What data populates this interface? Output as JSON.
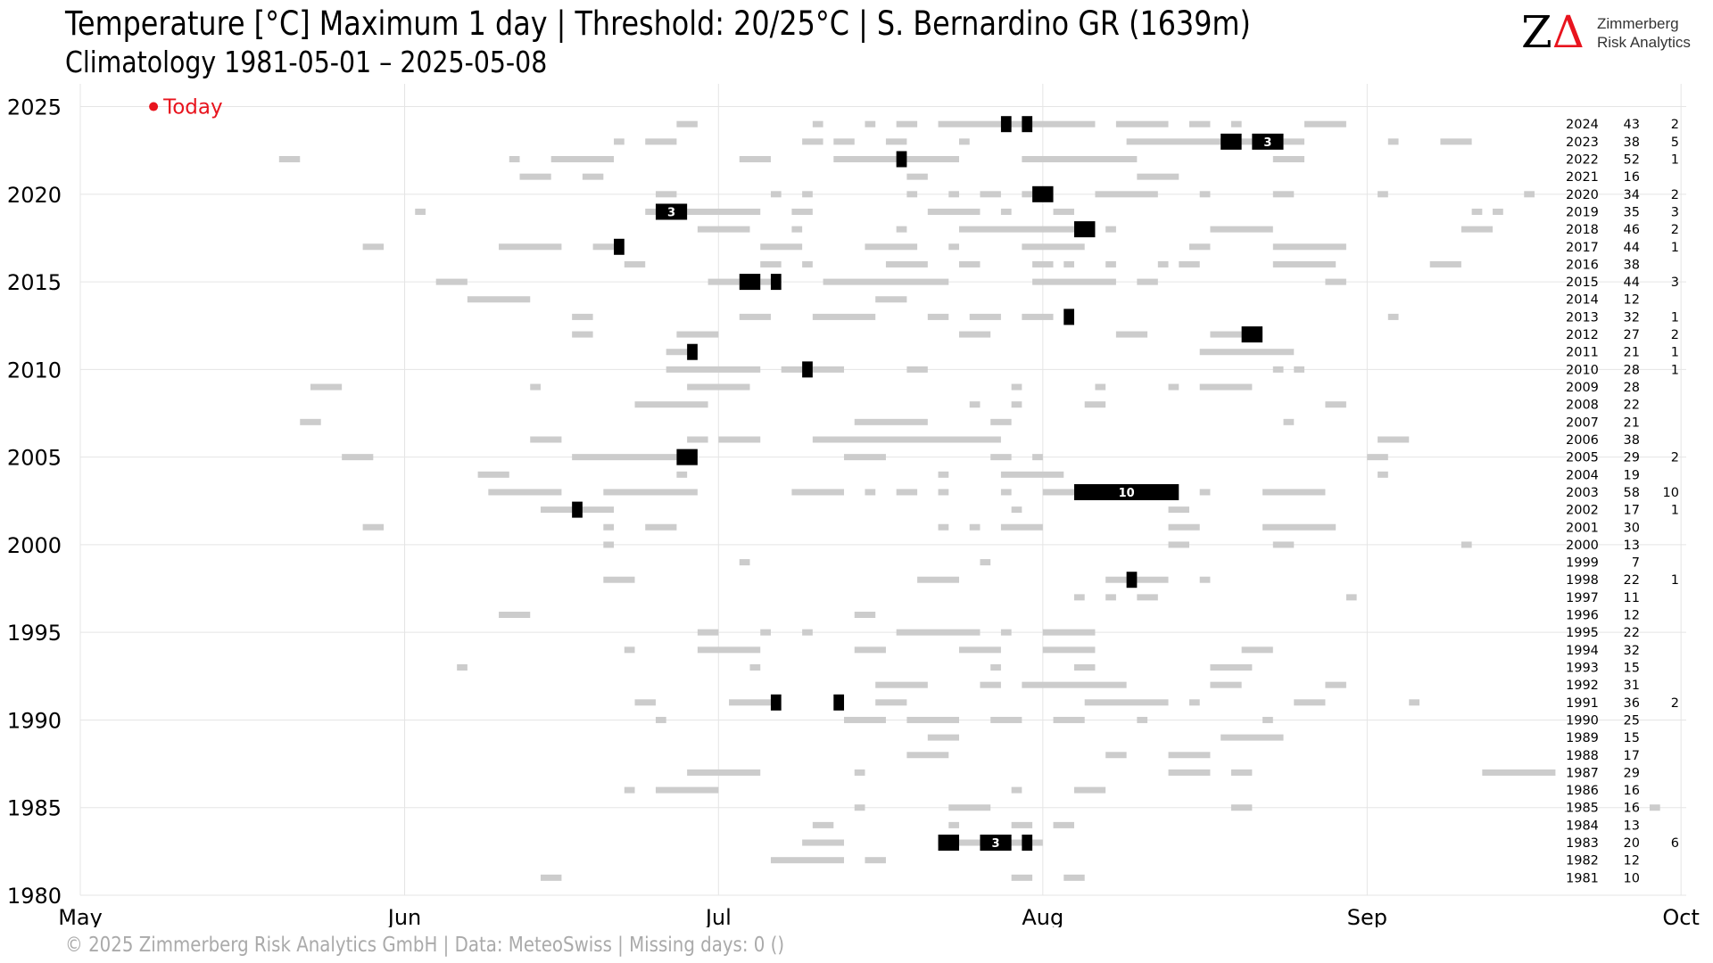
{
  "title": "Temperature [°C] Maximum 1 day | Threshold: 20/25°C | S. Bernardino  GR (1639m)",
  "subtitle": "Climatology 1981-05-01 – 2025-05-08",
  "logo": {
    "mark_z": "Z",
    "mark_delta": "Δ",
    "line1": "Zimmerberg",
    "line2": "Risk Analytics"
  },
  "footer": "©  2025 Zimmerberg Risk Analytics GmbH | Data: MeteoSwiss | Missing days: 0 ()",
  "colors": {
    "light_bar": "#cccccc",
    "dark_bar": "#000000",
    "today": "#e8141e",
    "grid": "#e5e5e5"
  },
  "chart_data": {
    "type": "timeline",
    "x_tick_labels": [
      "May",
      "Jun",
      "Jul",
      "Aug",
      "Sep",
      "Oct"
    ],
    "x_tick_days": [
      0,
      31,
      61,
      92,
      123,
      153
    ],
    "xlim": [
      0,
      153.5
    ],
    "y_ticks": [
      1980,
      1985,
      1990,
      1995,
      2000,
      2005,
      2010,
      2015,
      2020,
      2025
    ],
    "ylim": [
      1980,
      2026.3
    ],
    "today": {
      "label": "Today",
      "year": 2025,
      "day": 7
    },
    "year_stats": [
      {
        "year": 2024,
        "days": 43,
        "events": 2
      },
      {
        "year": 2023,
        "days": 38,
        "events": 5
      },
      {
        "year": 2022,
        "days": 52,
        "events": 1
      },
      {
        "year": 2021,
        "days": 16,
        "events": null
      },
      {
        "year": 2020,
        "days": 34,
        "events": 2
      },
      {
        "year": 2019,
        "days": 35,
        "events": 3
      },
      {
        "year": 2018,
        "days": 46,
        "events": 2
      },
      {
        "year": 2017,
        "days": 44,
        "events": 1
      },
      {
        "year": 2016,
        "days": 38,
        "events": null
      },
      {
        "year": 2015,
        "days": 44,
        "events": 3
      },
      {
        "year": 2014,
        "days": 12,
        "events": null
      },
      {
        "year": 2013,
        "days": 32,
        "events": 1
      },
      {
        "year": 2012,
        "days": 27,
        "events": 2
      },
      {
        "year": 2011,
        "days": 21,
        "events": 1
      },
      {
        "year": 2010,
        "days": 28,
        "events": 1
      },
      {
        "year": 2009,
        "days": 28,
        "events": null
      },
      {
        "year": 2008,
        "days": 22,
        "events": null
      },
      {
        "year": 2007,
        "days": 21,
        "events": null
      },
      {
        "year": 2006,
        "days": 38,
        "events": null
      },
      {
        "year": 2005,
        "days": 29,
        "events": 2
      },
      {
        "year": 2004,
        "days": 19,
        "events": null
      },
      {
        "year": 2003,
        "days": 58,
        "events": 10
      },
      {
        "year": 2002,
        "days": 17,
        "events": 1
      },
      {
        "year": 2001,
        "days": 30,
        "events": null
      },
      {
        "year": 2000,
        "days": 13,
        "events": null
      },
      {
        "year": 1999,
        "days": 7,
        "events": null
      },
      {
        "year": 1998,
        "days": 22,
        "events": 1
      },
      {
        "year": 1997,
        "days": 11,
        "events": null
      },
      {
        "year": 1996,
        "days": 12,
        "events": null
      },
      {
        "year": 1995,
        "days": 22,
        "events": null
      },
      {
        "year": 1994,
        "days": 32,
        "events": null
      },
      {
        "year": 1993,
        "days": 15,
        "events": null
      },
      {
        "year": 1992,
        "days": 31,
        "events": null
      },
      {
        "year": 1991,
        "days": 36,
        "events": 2
      },
      {
        "year": 1990,
        "days": 25,
        "events": null
      },
      {
        "year": 1989,
        "days": 15,
        "events": null
      },
      {
        "year": 1988,
        "days": 17,
        "events": null
      },
      {
        "year": 1987,
        "days": 29,
        "events": null
      },
      {
        "year": 1986,
        "days": 16,
        "events": null
      },
      {
        "year": 1985,
        "days": 16,
        "events": null
      },
      {
        "year": 1984,
        "days": 13,
        "events": null
      },
      {
        "year": 1983,
        "days": 20,
        "events": 6
      },
      {
        "year": 1982,
        "days": 12,
        "events": null
      },
      {
        "year": 1981,
        "days": 10,
        "events": null
      }
    ],
    "light_spans": {
      "2024": [
        [
          57,
          59
        ],
        [
          70,
          71
        ],
        [
          75,
          76
        ],
        [
          78,
          80
        ],
        [
          82,
          97
        ],
        [
          99,
          104
        ],
        [
          106,
          108
        ],
        [
          110,
          111
        ],
        [
          117,
          121
        ]
      ],
      "2023": [
        [
          51,
          52
        ],
        [
          54,
          57
        ],
        [
          69,
          71
        ],
        [
          72,
          74
        ],
        [
          77,
          79
        ],
        [
          84,
          85
        ],
        [
          100,
          112
        ],
        [
          115,
          117
        ],
        [
          125,
          126
        ],
        [
          130,
          133
        ]
      ],
      "2022": [
        [
          19,
          21
        ],
        [
          41,
          42
        ],
        [
          45,
          51
        ],
        [
          63,
          66
        ],
        [
          72,
          84
        ],
        [
          90,
          101
        ],
        [
          114,
          117
        ]
      ],
      "2021": [
        [
          42,
          45
        ],
        [
          48,
          50
        ],
        [
          79,
          81
        ],
        [
          101,
          105
        ]
      ],
      "2020": [
        [
          55,
          57
        ],
        [
          66,
          67
        ],
        [
          69,
          70
        ],
        [
          79,
          80
        ],
        [
          83,
          84
        ],
        [
          86,
          88
        ],
        [
          90,
          91
        ],
        [
          97,
          103
        ],
        [
          107,
          108
        ],
        [
          114,
          116
        ],
        [
          124,
          125
        ],
        [
          138,
          139
        ]
      ],
      "2019": [
        [
          32,
          33
        ],
        [
          54,
          56
        ],
        [
          58,
          65
        ],
        [
          68,
          70
        ],
        [
          81,
          86
        ],
        [
          88,
          89
        ],
        [
          93,
          95
        ],
        [
          133,
          134
        ],
        [
          135,
          136
        ]
      ],
      "2018": [
        [
          59,
          64
        ],
        [
          68,
          69
        ],
        [
          78,
          79
        ],
        [
          84,
          96
        ],
        [
          98,
          99
        ],
        [
          108,
          114
        ],
        [
          132,
          135
        ]
      ],
      "2017": [
        [
          27,
          29
        ],
        [
          40,
          46
        ],
        [
          49,
          51
        ],
        [
          65,
          69
        ],
        [
          75,
          80
        ],
        [
          83,
          84
        ],
        [
          90,
          96
        ],
        [
          106,
          108
        ],
        [
          114,
          121
        ]
      ],
      "2016": [
        [
          52,
          54
        ],
        [
          65,
          67
        ],
        [
          69,
          70
        ],
        [
          77,
          81
        ],
        [
          84,
          86
        ],
        [
          91,
          93
        ],
        [
          94,
          95
        ],
        [
          98,
          99
        ],
        [
          103,
          104
        ],
        [
          105,
          107
        ],
        [
          114,
          120
        ],
        [
          129,
          132
        ]
      ],
      "2015": [
        [
          34,
          37
        ],
        [
          60,
          63
        ],
        [
          65,
          66
        ],
        [
          71,
          83
        ],
        [
          91,
          99
        ],
        [
          101,
          103
        ],
        [
          119,
          121
        ]
      ],
      "2014": [
        [
          37,
          43
        ],
        [
          76,
          79
        ]
      ],
      "2013": [
        [
          47,
          49
        ],
        [
          63,
          66
        ],
        [
          70,
          76
        ],
        [
          81,
          83
        ],
        [
          85,
          88
        ],
        [
          90,
          93
        ],
        [
          125,
          126
        ]
      ],
      "2012": [
        [
          47,
          49
        ],
        [
          57,
          61
        ],
        [
          84,
          87
        ],
        [
          99,
          102
        ],
        [
          108,
          113
        ]
      ],
      "2011": [
        [
          56,
          59
        ],
        [
          107,
          116
        ]
      ],
      "2010": [
        [
          56,
          65
        ],
        [
          67,
          73
        ],
        [
          79,
          81
        ],
        [
          114,
          115
        ],
        [
          116,
          117
        ]
      ],
      "2009": [
        [
          22,
          25
        ],
        [
          43,
          44
        ],
        [
          58,
          64
        ],
        [
          89,
          90
        ],
        [
          97,
          98
        ],
        [
          104,
          105
        ],
        [
          107,
          112
        ]
      ],
      "2008": [
        [
          53,
          60
        ],
        [
          85,
          86
        ],
        [
          89,
          90
        ],
        [
          96,
          98
        ],
        [
          119,
          121
        ]
      ],
      "2007": [
        [
          21,
          23
        ],
        [
          74,
          81
        ],
        [
          87,
          89
        ],
        [
          115,
          116
        ]
      ],
      "2006": [
        [
          43,
          46
        ],
        [
          58,
          60
        ],
        [
          61,
          65
        ],
        [
          70,
          88
        ],
        [
          124,
          127
        ]
      ],
      "2005": [
        [
          25,
          28
        ],
        [
          47,
          57
        ],
        [
          73,
          77
        ],
        [
          87,
          89
        ],
        [
          91,
          92
        ],
        [
          123,
          125
        ]
      ],
      "2004": [
        [
          38,
          41
        ],
        [
          57,
          58
        ],
        [
          82,
          83
        ],
        [
          88,
          94
        ],
        [
          124,
          125
        ]
      ],
      "2003": [
        [
          39,
          46
        ],
        [
          50,
          59
        ],
        [
          68,
          73
        ],
        [
          75,
          76
        ],
        [
          78,
          80
        ],
        [
          82,
          83
        ],
        [
          88,
          89
        ],
        [
          92,
          95
        ],
        [
          107,
          108
        ],
        [
          113,
          119
        ]
      ],
      "2002": [
        [
          44,
          51
        ],
        [
          89,
          90
        ],
        [
          104,
          106
        ]
      ],
      "2001": [
        [
          27,
          29
        ],
        [
          50,
          51
        ],
        [
          54,
          57
        ],
        [
          82,
          83
        ],
        [
          85,
          86
        ],
        [
          88,
          92
        ],
        [
          104,
          107
        ],
        [
          113,
          120
        ]
      ],
      "2000": [
        [
          50,
          51
        ],
        [
          104,
          106
        ],
        [
          114,
          116
        ],
        [
          132,
          133
        ]
      ],
      "1999": [
        [
          63,
          64
        ],
        [
          86,
          87
        ]
      ],
      "1998": [
        [
          50,
          53
        ],
        [
          80,
          84
        ],
        [
          98,
          104
        ],
        [
          107,
          108
        ]
      ],
      "1997": [
        [
          95,
          96
        ],
        [
          98,
          99
        ],
        [
          101,
          103
        ],
        [
          121,
          122
        ]
      ],
      "1996": [
        [
          40,
          43
        ],
        [
          74,
          76
        ]
      ],
      "1995": [
        [
          59,
          61
        ],
        [
          65,
          66
        ],
        [
          69,
          70
        ],
        [
          78,
          86
        ],
        [
          88,
          89
        ],
        [
          92,
          97
        ]
      ],
      "1994": [
        [
          52,
          53
        ],
        [
          59,
          65
        ],
        [
          74,
          77
        ],
        [
          84,
          88
        ],
        [
          92,
          97
        ],
        [
          111,
          114
        ]
      ],
      "1993": [
        [
          36,
          37
        ],
        [
          64,
          65
        ],
        [
          87,
          88
        ],
        [
          95,
          97
        ],
        [
          108,
          112
        ]
      ],
      "1992": [
        [
          76,
          81
        ],
        [
          86,
          88
        ],
        [
          90,
          100
        ],
        [
          108,
          111
        ],
        [
          119,
          121
        ]
      ],
      "1991": [
        [
          53,
          55
        ],
        [
          62,
          66
        ],
        [
          76,
          79
        ],
        [
          96,
          104
        ],
        [
          106,
          107
        ],
        [
          116,
          119
        ],
        [
          127,
          128
        ]
      ],
      "1990": [
        [
          55,
          56
        ],
        [
          73,
          77
        ],
        [
          79,
          84
        ],
        [
          87,
          90
        ],
        [
          93,
          96
        ],
        [
          101,
          102
        ],
        [
          113,
          114
        ]
      ],
      "1989": [
        [
          81,
          84
        ],
        [
          109,
          115
        ]
      ],
      "1988": [
        [
          79,
          83
        ],
        [
          98,
          100
        ],
        [
          104,
          108
        ]
      ],
      "1987": [
        [
          58,
          65
        ],
        [
          74,
          75
        ],
        [
          104,
          108
        ],
        [
          110,
          112
        ],
        [
          134,
          141
        ]
      ],
      "1986": [
        [
          52,
          53
        ],
        [
          55,
          61
        ],
        [
          89,
          90
        ],
        [
          95,
          98
        ]
      ],
      "1985": [
        [
          74,
          75
        ],
        [
          83,
          87
        ],
        [
          110,
          112
        ],
        [
          150,
          151
        ]
      ],
      "1984": [
        [
          70,
          72
        ],
        [
          83,
          84
        ],
        [
          89,
          91
        ],
        [
          93,
          95
        ]
      ],
      "1983": [
        [
          69,
          73
        ],
        [
          82,
          92
        ]
      ],
      "1982": [
        [
          66,
          73
        ],
        [
          75,
          77
        ]
      ],
      "1981": [
        [
          44,
          46
        ],
        [
          89,
          91
        ],
        [
          94,
          96
        ]
      ]
    },
    "dark_spans": [
      {
        "year": 2024,
        "start": 88,
        "end": 89,
        "label": ""
      },
      {
        "year": 2024,
        "start": 90,
        "end": 91,
        "label": ""
      },
      {
        "year": 2023,
        "start": 109,
        "end": 111,
        "label": ""
      },
      {
        "year": 2023,
        "start": 112,
        "end": 115,
        "label": "3"
      },
      {
        "year": 2022,
        "start": 78,
        "end": 79,
        "label": ""
      },
      {
        "year": 2020,
        "start": 91,
        "end": 93,
        "label": ""
      },
      {
        "year": 2019,
        "start": 55,
        "end": 58,
        "label": "3"
      },
      {
        "year": 2018,
        "start": 95,
        "end": 97,
        "label": ""
      },
      {
        "year": 2017,
        "start": 51,
        "end": 52,
        "label": ""
      },
      {
        "year": 2015,
        "start": 63,
        "end": 65,
        "label": ""
      },
      {
        "year": 2015,
        "start": 66,
        "end": 67,
        "label": ""
      },
      {
        "year": 2013,
        "start": 94,
        "end": 95,
        "label": ""
      },
      {
        "year": 2012,
        "start": 111,
        "end": 113,
        "label": ""
      },
      {
        "year": 2011,
        "start": 58,
        "end": 59,
        "label": ""
      },
      {
        "year": 2010,
        "start": 69,
        "end": 70,
        "label": ""
      },
      {
        "year": 2005,
        "start": 57,
        "end": 59,
        "label": ""
      },
      {
        "year": 2003,
        "start": 95,
        "end": 105,
        "label": "10"
      },
      {
        "year": 2002,
        "start": 47,
        "end": 48,
        "label": ""
      },
      {
        "year": 1998,
        "start": 100,
        "end": 101,
        "label": ""
      },
      {
        "year": 1991,
        "start": 66,
        "end": 67,
        "label": ""
      },
      {
        "year": 1991,
        "start": 72,
        "end": 73,
        "label": ""
      },
      {
        "year": 1983,
        "start": 82,
        "end": 84,
        "label": ""
      },
      {
        "year": 1983,
        "start": 86,
        "end": 89,
        "label": "3"
      },
      {
        "year": 1983,
        "start": 90,
        "end": 91,
        "label": ""
      }
    ]
  }
}
